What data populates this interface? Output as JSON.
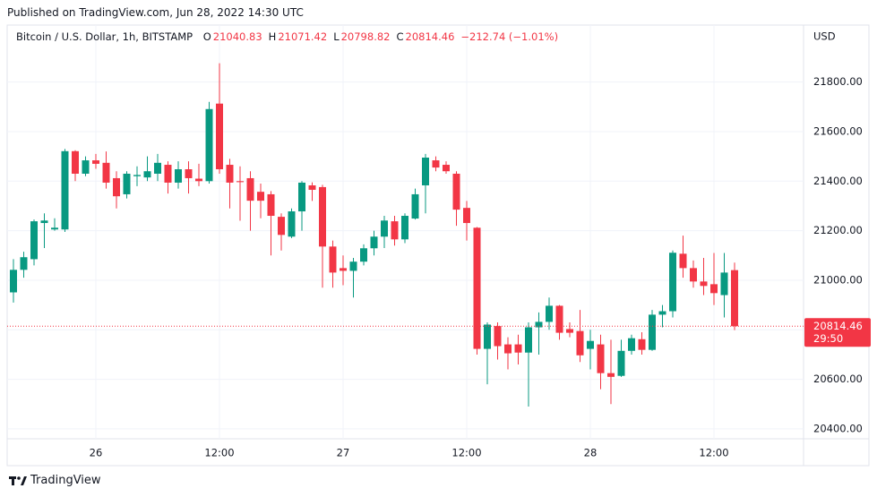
{
  "published": "Published on TradingView.com, Jun 28, 2022 14:30 UTC",
  "brand": "TradingView",
  "chart_data": {
    "type": "candlestick",
    "title": "Bitcoin / U.S. Dollar, 1h, BITSTAMP",
    "legend_keys": [
      "O",
      "H",
      "L",
      "C"
    ],
    "change": "−212.74 (−1.01%)",
    "y_axis_label": "USD",
    "countdown": "29:50",
    "categories": [
      null,
      null,
      null,
      null,
      null,
      null,
      null,
      null,
      "26",
      null,
      null,
      null,
      null,
      null,
      null,
      null,
      null,
      null,
      null,
      null,
      "12:00",
      null,
      null,
      null,
      null,
      null,
      null,
      null,
      null,
      null,
      null,
      null,
      "27",
      null,
      null,
      null,
      null,
      null,
      null,
      null,
      null,
      null,
      null,
      null,
      "12:00",
      null,
      null,
      null,
      null,
      null,
      null,
      null,
      null,
      null,
      null,
      null,
      "28",
      null,
      null,
      null,
      null,
      null,
      null,
      null,
      null,
      null,
      null,
      null,
      "12:00",
      null,
      null
    ],
    "open": [
      20951,
      21042,
      21085,
      21231,
      21205,
      21205,
      21521,
      21430,
      21484,
      21474,
      21412,
      21347,
      21420,
      21415,
      21430,
      21466,
      21394,
      21448,
      21410,
      21400,
      21713,
      21466,
      21400,
      21412,
      21357,
      21347,
      21256,
      21176,
      21278,
      21383,
      21376,
      21136,
      21049,
      21038,
      21075,
      21129,
      21176,
      21238,
      21165,
      21249,
      21383,
      21484,
      21466,
      21430,
      21292,
      21212,
      20723,
      20815,
      20741,
      20741,
      20708,
      20810,
      20832,
      20897,
      20803,
      20795,
      20723,
      20741,
      20625,
      20614,
      20715,
      20762,
      20719,
      20861,
      20875,
      21107,
      21049,
      20995,
      20984,
      20940,
      21040.83
    ],
    "high": [
      21085,
      21115,
      21245,
      21270,
      21250,
      21530,
      21525,
      21500,
      21510,
      21520,
      21440,
      21440,
      21460,
      21500,
      21510,
      21480,
      21480,
      21480,
      21470,
      21720,
      21876,
      21490,
      21460,
      21440,
      21390,
      21360,
      21270,
      21290,
      21400,
      21395,
      21385,
      21160,
      21100,
      21090,
      21145,
      21200,
      21260,
      21260,
      21270,
      21370,
      21510,
      21500,
      21480,
      21440,
      21320,
      21215,
      20830,
      20830,
      20770,
      20780,
      20830,
      20870,
      20930,
      20900,
      20830,
      20880,
      20800,
      20780,
      20760,
      20760,
      20780,
      20790,
      20880,
      20900,
      21120,
      21180,
      21080,
      21090,
      21110,
      21110,
      21071.42
    ],
    "low": [
      20910,
      21010,
      21060,
      21130,
      21200,
      21195,
      21400,
      21420,
      21450,
      21370,
      21290,
      21330,
      21380,
      21400,
      21400,
      21350,
      21370,
      21350,
      21380,
      21390,
      21430,
      21290,
      21240,
      21200,
      21250,
      21100,
      21120,
      21170,
      21200,
      21320,
      20970,
      20970,
      20980,
      20930,
      21060,
      21100,
      21130,
      21140,
      21150,
      21245,
      21270,
      21440,
      21430,
      21220,
      21160,
      20700,
      20580,
      20680,
      20640,
      20660,
      20490,
      20700,
      20800,
      20760,
      20770,
      20670,
      20640,
      20560,
      20500,
      20610,
      20700,
      20700,
      20715,
      20810,
      20850,
      21010,
      20970,
      20940,
      20900,
      20850,
      20798.82
    ],
    "close": [
      21042,
      21093,
      21238,
      21241,
      21212,
      21521,
      21430,
      21484,
      21470,
      21394,
      21339,
      21430,
      21425,
      21440,
      21474,
      21394,
      21448,
      21412,
      21400,
      21691,
      21448,
      21394,
      21396,
      21321,
      21321,
      21260,
      21183,
      21278,
      21394,
      21365,
      21136,
      21031,
      21038,
      21075,
      21129,
      21176,
      21241,
      21165,
      21260,
      21347,
      21495,
      21455,
      21440,
      21285,
      21231,
      20723,
      20821,
      20734,
      20705,
      20708,
      20810,
      20832,
      20897,
      20788,
      20788,
      20697,
      20755,
      20625,
      20610,
      20715,
      20766,
      20719,
      20861,
      20875,
      21111,
      21049,
      20995,
      20977,
      20948,
      21031,
      20814.46
    ],
    "up_color": "#089981",
    "down_color": "#f23645",
    "ylim": [
      20360,
      22030
    ],
    "yticks": [
      {
        "value": 20400,
        "label": "20400.00"
      },
      {
        "value": 20600,
        "label": "20600.00"
      },
      {
        "value": 20800,
        "label": "20800.00"
      },
      {
        "value": 21000,
        "label": "21000.00"
      },
      {
        "value": 21200,
        "label": "21200.00"
      },
      {
        "value": 21400,
        "label": "21400.00"
      },
      {
        "value": 21600,
        "label": "21600.00"
      },
      {
        "value": 21800,
        "label": "21800.00"
      }
    ],
    "grid": true
  }
}
